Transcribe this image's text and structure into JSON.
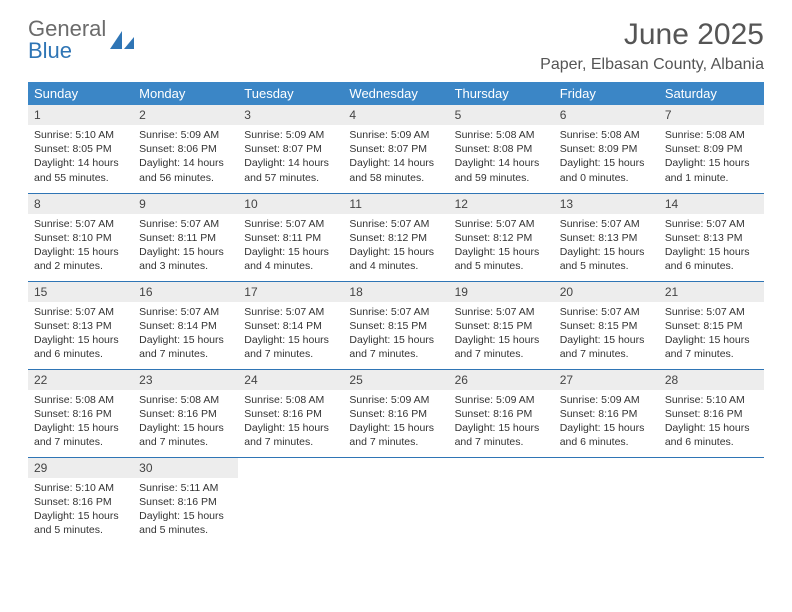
{
  "logo": {
    "line1": "General",
    "line2": "Blue"
  },
  "title": "June 2025",
  "location": "Paper, Elbasan County, Albania",
  "colors": {
    "header_bg": "#3b86c6",
    "row_divider": "#2f75b5",
    "daynum_bg": "#ededed",
    "logo_gray": "#6b6b6b",
    "logo_blue": "#2f75b5"
  },
  "weekdays": [
    "Sunday",
    "Monday",
    "Tuesday",
    "Wednesday",
    "Thursday",
    "Friday",
    "Saturday"
  ],
  "weeks": [
    [
      {
        "n": "1",
        "sr": "5:10 AM",
        "ss": "8:05 PM",
        "dl": "14 hours and 55 minutes."
      },
      {
        "n": "2",
        "sr": "5:09 AM",
        "ss": "8:06 PM",
        "dl": "14 hours and 56 minutes."
      },
      {
        "n": "3",
        "sr": "5:09 AM",
        "ss": "8:07 PM",
        "dl": "14 hours and 57 minutes."
      },
      {
        "n": "4",
        "sr": "5:09 AM",
        "ss": "8:07 PM",
        "dl": "14 hours and 58 minutes."
      },
      {
        "n": "5",
        "sr": "5:08 AM",
        "ss": "8:08 PM",
        "dl": "14 hours and 59 minutes."
      },
      {
        "n": "6",
        "sr": "5:08 AM",
        "ss": "8:09 PM",
        "dl": "15 hours and 0 minutes."
      },
      {
        "n": "7",
        "sr": "5:08 AM",
        "ss": "8:09 PM",
        "dl": "15 hours and 1 minute."
      }
    ],
    [
      {
        "n": "8",
        "sr": "5:07 AM",
        "ss": "8:10 PM",
        "dl": "15 hours and 2 minutes."
      },
      {
        "n": "9",
        "sr": "5:07 AM",
        "ss": "8:11 PM",
        "dl": "15 hours and 3 minutes."
      },
      {
        "n": "10",
        "sr": "5:07 AM",
        "ss": "8:11 PM",
        "dl": "15 hours and 4 minutes."
      },
      {
        "n": "11",
        "sr": "5:07 AM",
        "ss": "8:12 PM",
        "dl": "15 hours and 4 minutes."
      },
      {
        "n": "12",
        "sr": "5:07 AM",
        "ss": "8:12 PM",
        "dl": "15 hours and 5 minutes."
      },
      {
        "n": "13",
        "sr": "5:07 AM",
        "ss": "8:13 PM",
        "dl": "15 hours and 5 minutes."
      },
      {
        "n": "14",
        "sr": "5:07 AM",
        "ss": "8:13 PM",
        "dl": "15 hours and 6 minutes."
      }
    ],
    [
      {
        "n": "15",
        "sr": "5:07 AM",
        "ss": "8:13 PM",
        "dl": "15 hours and 6 minutes."
      },
      {
        "n": "16",
        "sr": "5:07 AM",
        "ss": "8:14 PM",
        "dl": "15 hours and 7 minutes."
      },
      {
        "n": "17",
        "sr": "5:07 AM",
        "ss": "8:14 PM",
        "dl": "15 hours and 7 minutes."
      },
      {
        "n": "18",
        "sr": "5:07 AM",
        "ss": "8:15 PM",
        "dl": "15 hours and 7 minutes."
      },
      {
        "n": "19",
        "sr": "5:07 AM",
        "ss": "8:15 PM",
        "dl": "15 hours and 7 minutes."
      },
      {
        "n": "20",
        "sr": "5:07 AM",
        "ss": "8:15 PM",
        "dl": "15 hours and 7 minutes."
      },
      {
        "n": "21",
        "sr": "5:07 AM",
        "ss": "8:15 PM",
        "dl": "15 hours and 7 minutes."
      }
    ],
    [
      {
        "n": "22",
        "sr": "5:08 AM",
        "ss": "8:16 PM",
        "dl": "15 hours and 7 minutes."
      },
      {
        "n": "23",
        "sr": "5:08 AM",
        "ss": "8:16 PM",
        "dl": "15 hours and 7 minutes."
      },
      {
        "n": "24",
        "sr": "5:08 AM",
        "ss": "8:16 PM",
        "dl": "15 hours and 7 minutes."
      },
      {
        "n": "25",
        "sr": "5:09 AM",
        "ss": "8:16 PM",
        "dl": "15 hours and 7 minutes."
      },
      {
        "n": "26",
        "sr": "5:09 AM",
        "ss": "8:16 PM",
        "dl": "15 hours and 7 minutes."
      },
      {
        "n": "27",
        "sr": "5:09 AM",
        "ss": "8:16 PM",
        "dl": "15 hours and 6 minutes."
      },
      {
        "n": "28",
        "sr": "5:10 AM",
        "ss": "8:16 PM",
        "dl": "15 hours and 6 minutes."
      }
    ],
    [
      {
        "n": "29",
        "sr": "5:10 AM",
        "ss": "8:16 PM",
        "dl": "15 hours and 5 minutes."
      },
      {
        "n": "30",
        "sr": "5:11 AM",
        "ss": "8:16 PM",
        "dl": "15 hours and 5 minutes."
      },
      null,
      null,
      null,
      null,
      null
    ]
  ],
  "labels": {
    "sunrise": "Sunrise: ",
    "sunset": "Sunset: ",
    "daylight": "Daylight: "
  }
}
